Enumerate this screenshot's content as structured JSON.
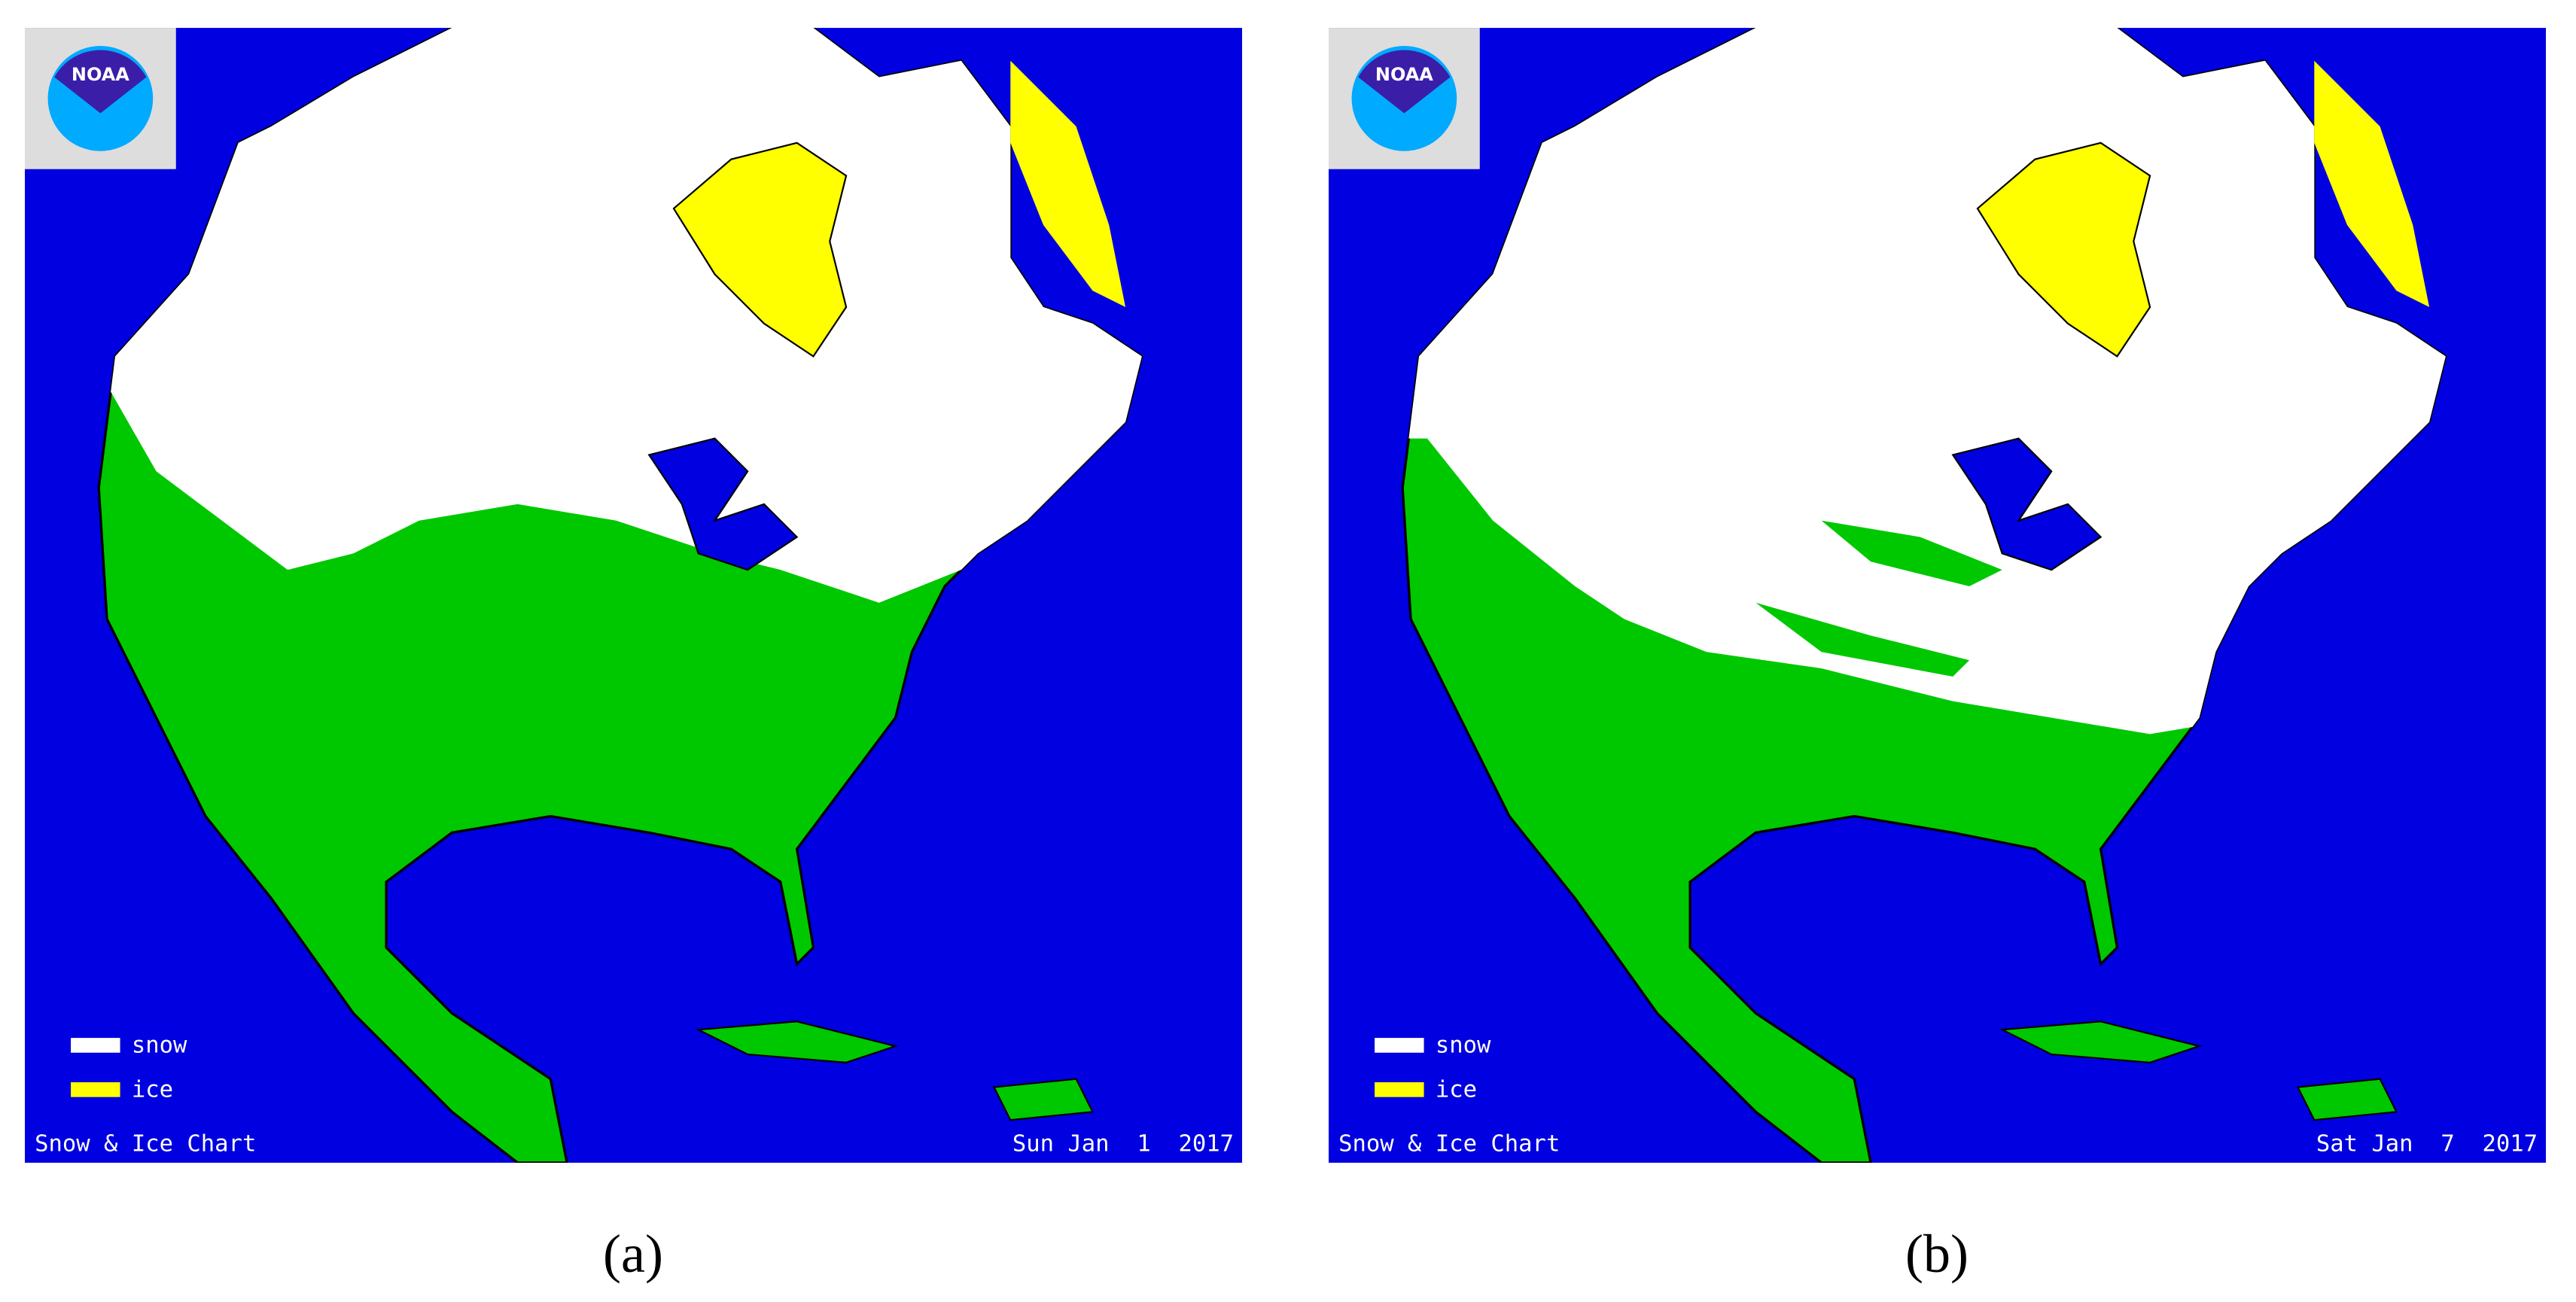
{
  "panels": [
    {
      "logo": "NOAA",
      "legend": [
        "snow",
        "ice"
      ],
      "title": "Snow & Ice Chart",
      "date": "Sun Jan  1  2017",
      "label": "(a)"
    },
    {
      "logo": "NOAA",
      "legend": [
        "snow",
        "ice"
      ],
      "title": "Snow & Ice Chart",
      "date": "Sat Jan  7  2017",
      "label": "(b)"
    }
  ]
}
